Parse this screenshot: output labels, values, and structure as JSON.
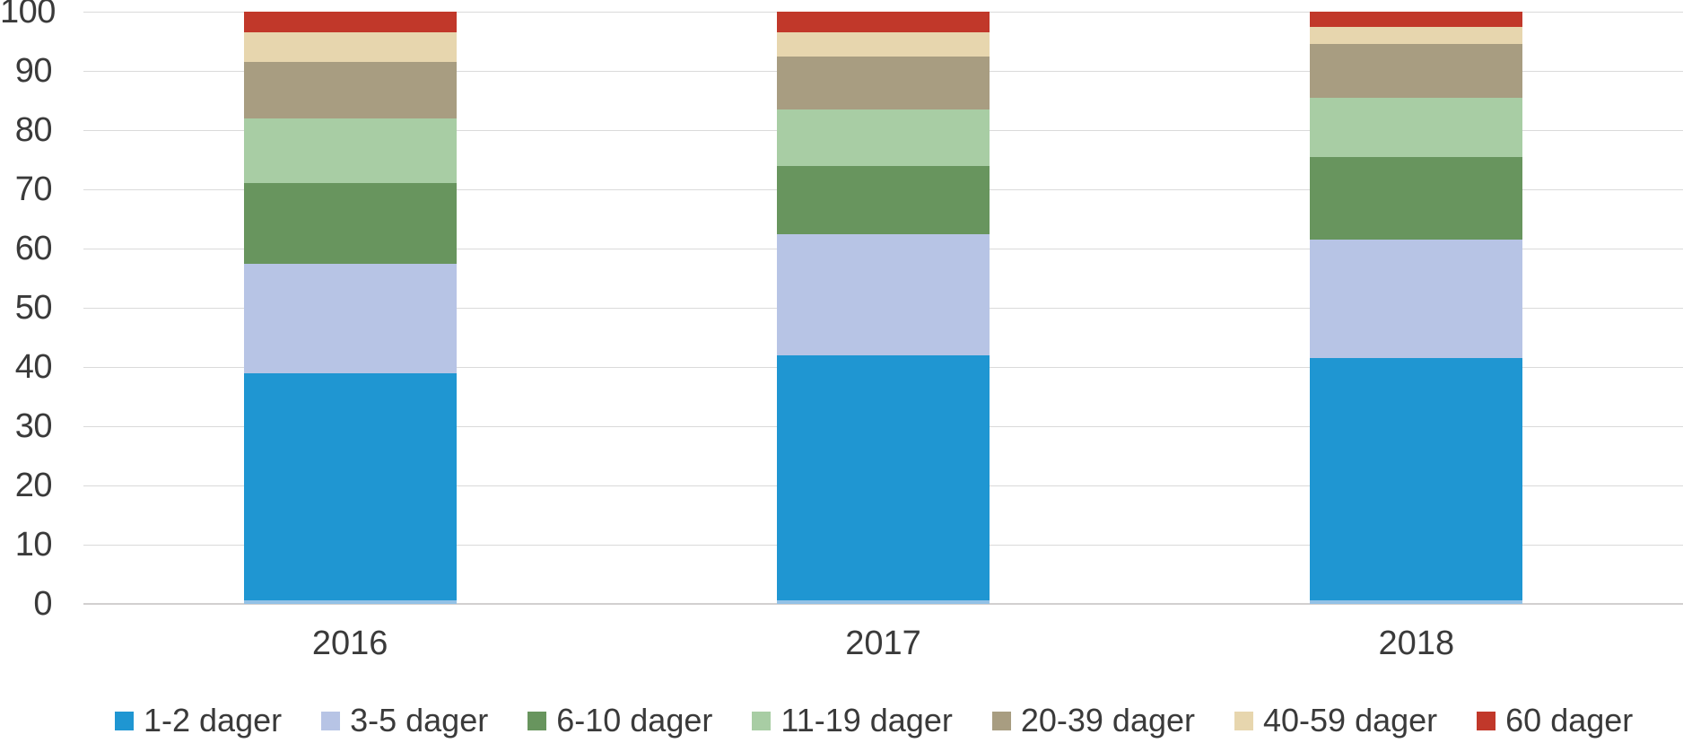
{
  "chart_data": {
    "type": "bar",
    "stacked": true,
    "percent_stacked": true,
    "title": "",
    "xlabel": "",
    "ylabel": "",
    "categories": [
      "2016",
      "2017",
      "2018"
    ],
    "series": [
      {
        "name": "1-2 dager",
        "color": "#1f96d2",
        "values": [
          39,
          42,
          41.5
        ]
      },
      {
        "name": "3-5 dager",
        "color": "#b7c4e5",
        "values": [
          18.5,
          20.5,
          20
        ]
      },
      {
        "name": "6-10 dager",
        "color": "#68955e",
        "values": [
          13.5,
          11.5,
          14
        ]
      },
      {
        "name": "11-19 dager",
        "color": "#a8cda4",
        "values": [
          11,
          9.5,
          10
        ]
      },
      {
        "name": "20-39 dager",
        "color": "#a89d81",
        "values": [
          9.5,
          9,
          9
        ]
      },
      {
        "name": "40-59 dager",
        "color": "#e7d6ae",
        "values": [
          5,
          4,
          3
        ]
      },
      {
        "name": "60 dager",
        "color": "#c1382a",
        "values": [
          3.5,
          3.5,
          2.5
        ]
      }
    ],
    "ylim": [
      0,
      100
    ],
    "yticks": [
      0,
      10,
      20,
      30,
      40,
      50,
      60,
      70,
      80,
      90,
      100
    ],
    "grid": true,
    "gridline_color": "#dadada",
    "axis_text_color": "#3a3a3a",
    "legend_position": "bottom"
  }
}
